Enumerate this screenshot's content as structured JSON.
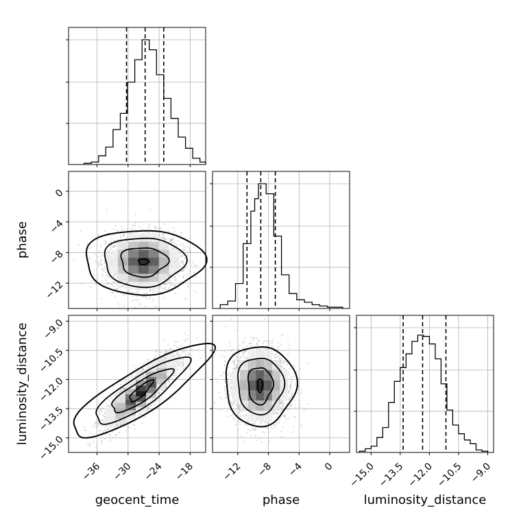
{
  "chart_data": {
    "type": "corner",
    "parameters": [
      "geocent_time",
      "phase",
      "luminosity_distance"
    ],
    "axis_labels": {
      "x": [
        "geocent_time",
        "phase",
        "luminosity_distance"
      ],
      "y": [
        "phase",
        "luminosity_distance"
      ]
    },
    "ranges": {
      "geocent_time": [
        -41.5,
        -15.0
      ],
      "phase": [
        -15.3,
        2.6
      ],
      "luminosity_distance": [
        -15.75,
        -8.7
      ]
    },
    "ticks": {
      "geocent_time": [
        -36,
        -30,
        -24,
        -18
      ],
      "phase": [
        -12,
        -8,
        -4,
        0
      ],
      "luminosity_distance": [
        -15.0,
        -13.5,
        -12.0,
        -10.5,
        -9.0
      ]
    },
    "tick_labels": {
      "geocent_time": [
        "−36",
        "−30",
        "−24",
        "−18"
      ],
      "phase": [
        "−12",
        "−8",
        "−4",
        "0"
      ],
      "luminosity_distance": [
        "−15.0",
        "−13.5",
        "−12.0",
        "−10.5",
        "−9.0"
      ]
    },
    "quantiles": {
      "geocent_time": [
        -30.3,
        -26.7,
        -23.1
      ],
      "phase": [
        -10.8,
        -9.0,
        -7.1
      ],
      "luminosity_distance": [
        -13.35,
        -12.35,
        -11.15
      ]
    },
    "histograms": {
      "geocent_time": {
        "edges": [
          -38.5,
          -37.1,
          -35.7,
          -34.3,
          -32.9,
          -31.5,
          -30.1,
          -28.7,
          -27.3,
          -25.9,
          -24.5,
          -23.1,
          -21.7,
          -20.3,
          -18.9,
          -17.5,
          -16.1,
          -15.0
        ],
        "counts": [
          0.01,
          0.02,
          0.07,
          0.14,
          0.28,
          0.41,
          0.66,
          0.84,
          1.0,
          0.92,
          0.72,
          0.53,
          0.37,
          0.22,
          0.13,
          0.05,
          0.02
        ]
      },
      "phase": {
        "edges": [
          -14.3,
          -13.3,
          -12.3,
          -11.3,
          -10.3,
          -9.8,
          -9.3,
          -8.3,
          -7.3,
          -6.3,
          -5.3,
          -4.3,
          -3.3,
          -2.3,
          -1.3,
          -0.3,
          0.7,
          1.7
        ],
        "counts": [
          0.03,
          0.06,
          0.2,
          0.52,
          0.78,
          0.88,
          1.0,
          0.92,
          0.58,
          0.27,
          0.12,
          0.07,
          0.05,
          0.03,
          0.02,
          0.01,
          0.01
        ]
      },
      "luminosity_distance": {
        "edges": [
          -15.6,
          -15.3,
          -15.0,
          -14.7,
          -14.4,
          -14.1,
          -13.8,
          -13.5,
          -13.2,
          -12.9,
          -12.6,
          -12.3,
          -12.0,
          -11.7,
          -11.4,
          -11.1,
          -10.8,
          -10.5,
          -10.2,
          -9.9,
          -9.6,
          -9.3,
          -9.0
        ],
        "counts": [
          0.01,
          0.03,
          0.05,
          0.12,
          0.2,
          0.4,
          0.57,
          0.68,
          0.79,
          0.89,
          0.94,
          0.93,
          0.87,
          0.75,
          0.55,
          0.34,
          0.22,
          0.15,
          0.1,
          0.07,
          0.02,
          0.01
        ]
      }
    },
    "joint": {
      "phase_vs_geocent_time": {
        "center": [
          -27.0,
          -9.2
        ],
        "spread": [
          3.6,
          1.9
        ],
        "correlation": 0.0,
        "contour_levels": [
          {
            "halfwidths": [
              1.0,
              0.35
            ]
          },
          {
            "halfwidths": [
              4.5,
              1.9
            ]
          },
          {
            "halfwidths": [
              7.8,
              3.2
            ]
          },
          {
            "halfwidths": [
              11.5,
              4.2
            ]
          }
        ]
      },
      "luminosity_distance_vs_geocent_time": {
        "center": [
          -27.5,
          -12.6
        ],
        "spread": [
          3.6,
          0.95
        ],
        "correlation": 0.85,
        "contour_levels": [
          {
            "halfwidths": [
              2.2,
              0.55
            ]
          },
          {
            "halfwidths": [
              5.8,
              1.1
            ]
          },
          {
            "halfwidths": [
              9.0,
              1.7
            ]
          },
          {
            "halfwidths": [
              13.5,
              2.4
            ]
          }
        ]
      },
      "luminosity_distance_vs_phase": {
        "center": [
          -9.1,
          -12.3
        ],
        "spread": [
          1.9,
          0.95
        ],
        "correlation": 0.0,
        "contour_levels": [
          {
            "halfwidths": [
              0.3,
              0.35
            ]
          },
          {
            "halfwidths": [
              1.6,
              0.95
            ]
          },
          {
            "halfwidths": [
              3.0,
              1.45
            ]
          },
          {
            "halfwidths": [
              4.6,
              2.05
            ]
          }
        ]
      }
    },
    "grid": true
  }
}
